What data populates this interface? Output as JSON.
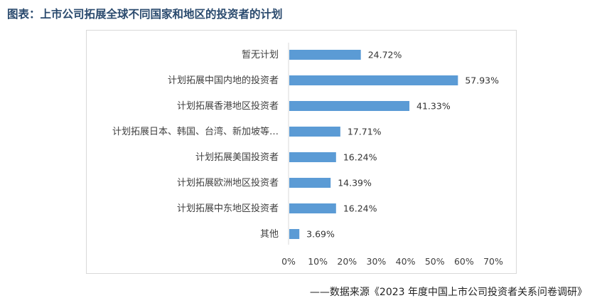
{
  "title": "图表：上市公司拓展全球不同国家和地区的投资者的计划",
  "source": "——数据来源《2023 年度中国上市公司投资者关系问卷调研》",
  "colors": {
    "bar": "#5b9bd5",
    "title": "#2a4a6e",
    "border": "#d9d9d9"
  },
  "chart_data": {
    "type": "bar",
    "orientation": "horizontal",
    "categories": [
      "暂无计划",
      "计划拓展中国内地的投资者",
      "计划拓展香港地区投资者",
      "计划拓展日本、韩国、台湾、新加坡等…",
      "计划拓展美国投资者",
      "计划拓展欧洲地区投资者",
      "计划拓展中东地区投资者",
      "其他"
    ],
    "values": [
      24.72,
      57.93,
      41.33,
      17.71,
      16.24,
      14.39,
      16.24,
      3.69
    ],
    "value_labels": [
      "24.72%",
      "57.93%",
      "41.33%",
      "17.71%",
      "16.24%",
      "14.39%",
      "16.24%",
      "3.69%"
    ],
    "xlim": [
      0,
      70
    ],
    "xticks": [
      "0%",
      "10%",
      "20%",
      "30%",
      "40%",
      "50%",
      "60%",
      "70%"
    ],
    "grid": false,
    "legend": "none"
  }
}
